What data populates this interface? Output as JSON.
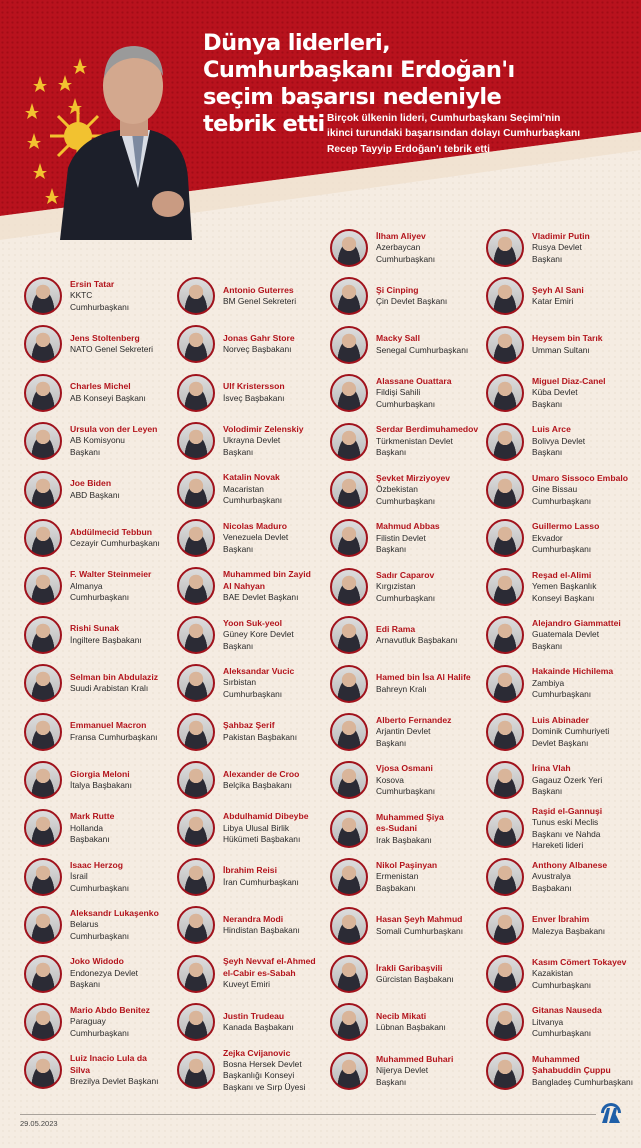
{
  "header": {
    "title": "Dünya liderleri,\nCumhurbaşkanı Erdoğan'ı\nseçim başarısı nedeniyle\ntebrik etti",
    "subtitle": "Birçok ülkenin lideri, Cumhurbaşkanı Seçimi'nin\nikinci turundaki başarısından dolayı Cumhurbaşkanı\nRecep Tayyip Erdoğan'ı tebrik etti"
  },
  "colors": {
    "brand_red": "#b8121d",
    "name_red": "#b3141c",
    "background": "#f5ece2",
    "logo_blue": "#1f5fa8"
  },
  "columns": [
    [
      {
        "name": "Ersin Tatar",
        "role": "KKTC\nCumhurbaşkanı"
      },
      {
        "name": "Jens Stoltenberg",
        "role": "NATO Genel Sekreteri"
      },
      {
        "name": "Charles Michel",
        "role": "AB Konseyi Başkanı"
      },
      {
        "name": "Ursula von der Leyen",
        "role": "AB Komisyonu\nBaşkanı"
      },
      {
        "name": "Joe Biden",
        "role": "ABD Başkanı"
      },
      {
        "name": "Abdülmecid Tebbun",
        "role": "Cezayir Cumhurbaşkanı"
      },
      {
        "name": "F. Walter Steinmeier",
        "role": "Almanya\nCumhurbaşkanı"
      },
      {
        "name": "Rishi Sunak",
        "role": "İngiltere Başbakanı"
      },
      {
        "name": "Selman bin Abdulaziz",
        "role": "Suudi Arabistan Kralı"
      },
      {
        "name": "Emmanuel Macron",
        "role": "Fransa Cumhurbaşkanı"
      },
      {
        "name": "Giorgia Meloni",
        "role": "İtalya Başbakanı"
      },
      {
        "name": "Mark Rutte",
        "role": "Hollanda\nBaşbakanı"
      },
      {
        "name": "Isaac Herzog",
        "role": "İsrail\nCumhurbaşkanı"
      },
      {
        "name": "Aleksandr Lukaşenko",
        "role": "Belarus\nCumhurbaşkanı"
      },
      {
        "name": "Joko Widodo",
        "role": "Endonezya Devlet\nBaşkanı"
      },
      {
        "name": "Mario Abdo Benitez",
        "role": "Paraguay\nCumhurbaşkanı"
      },
      {
        "name": "Luiz Inacio Lula da\nSilva",
        "role": "Brezilya Devlet Başkanı"
      }
    ],
    [
      {
        "name": "Antonio Guterres",
        "role": "BM Genel Sekreteri"
      },
      {
        "name": "Jonas Gahr Store",
        "role": "Norveç Başbakanı"
      },
      {
        "name": "Ulf Kristersson",
        "role": "İsveç Başbakanı"
      },
      {
        "name": "Volodimir Zelenskiy",
        "role": "Ukrayna Devlet\nBaşkanı"
      },
      {
        "name": "Katalin Novak",
        "role": "Macaristan\nCumhurbaşkanı"
      },
      {
        "name": "Nicolas Maduro",
        "role": "Venezuela Devlet\nBaşkanı"
      },
      {
        "name": "Muhammed bin Zayid\nAl Nahyan",
        "role": "BAE Devlet Başkanı"
      },
      {
        "name": "Yoon Suk-yeol",
        "role": "Güney Kore Devlet\nBaşkanı"
      },
      {
        "name": "Aleksandar Vucic",
        "role": "Sırbistan\nCumhurbaşkanı"
      },
      {
        "name": "Şahbaz Şerif",
        "role": "Pakistan Başbakanı"
      },
      {
        "name": "Alexander de Croo",
        "role": "Belçika Başbakanı"
      },
      {
        "name": "Abdulhamid Dibeybe",
        "role": "Libya Ulusal Birlik\nHükümeti Başbakanı"
      },
      {
        "name": "İbrahim Reisi",
        "role": "İran Cumhurbaşkanı"
      },
      {
        "name": "Nerandra Modi",
        "role": "Hindistan Başbakanı"
      },
      {
        "name": "Şeyh Nevvaf el-Ahmed\nel-Cabir es-Sabah",
        "role": "Kuveyt Emiri"
      },
      {
        "name": "Justin Trudeau",
        "role": "Kanada Başbakanı"
      },
      {
        "name": "Zejka Cvijanovic",
        "role": "Bosna Hersek Devlet\nBaşkanlığı Konseyi\nBaşkanı ve Sırp Üyesi"
      }
    ],
    [
      {
        "name": "İlham Aliyev",
        "role": "Azerbaycan\nCumhurbaşkanı"
      },
      {
        "name": "Şi Cinping",
        "role": "Çin Devlet Başkanı"
      },
      {
        "name": "Macky Sall",
        "role": "Senegal Cumhurbaşkanı"
      },
      {
        "name": "Alassane Ouattara",
        "role": "Fildişi Sahili\nCumhurbaşkanı"
      },
      {
        "name": "Serdar Berdimuhamedov",
        "role": "Türkmenistan Devlet\nBaşkanı"
      },
      {
        "name": "Şevket Mirziyoyev",
        "role": "Özbekistan\nCumhurbaşkanı"
      },
      {
        "name": "Mahmud Abbas",
        "role": "Filistin Devlet\nBaşkanı"
      },
      {
        "name": "Sadır Caparov",
        "role": "Kırgızistan\nCumhurbaşkanı"
      },
      {
        "name": "Edi Rama",
        "role": "Arnavutluk Başbakanı"
      },
      {
        "name": "Hamed bin İsa Al Halife",
        "role": "Bahreyn Kralı"
      },
      {
        "name": "Alberto Fernandez",
        "role": "Arjantin Devlet\nBaşkanı"
      },
      {
        "name": "Vjosa Osmani",
        "role": "Kosova\nCumhurbaşkanı"
      },
      {
        "name": "Muhammed Şiya\nes-Sudani",
        "role": "Irak Başbakanı"
      },
      {
        "name": "Nikol Paşinyan",
        "role": "Ermenistan\nBaşbakanı"
      },
      {
        "name": "Hasan Şeyh Mahmud",
        "role": "Somali Cumhurbaşkanı"
      },
      {
        "name": "İrakli Garibaşvili",
        "role": "Gürcistan Başbakanı"
      },
      {
        "name": "Necib Mikati",
        "role": "Lübnan Başbakanı"
      },
      {
        "name": "Muhammed Buhari",
        "role": "Nijerya Devlet\nBaşkanı"
      }
    ],
    [
      {
        "name": "Vladimir Putin",
        "role": "Rusya Devlet\nBaşkanı"
      },
      {
        "name": "Şeyh Al Sani",
        "role": "Katar Emiri"
      },
      {
        "name": "Heysem bin Tarık",
        "role": "Umman Sultanı"
      },
      {
        "name": "Miguel Diaz-Canel",
        "role": "Küba Devlet\nBaşkanı"
      },
      {
        "name": "Luis Arce",
        "role": "Bolivya Devlet\nBaşkanı"
      },
      {
        "name": "Umaro Sissoco Embalo",
        "role": "Gine Bissau\nCumhurbaşkanı"
      },
      {
        "name": "Guillermo Lasso",
        "role": "Ekvador\nCumhurbaşkanı"
      },
      {
        "name": "Reşad el-Alimi",
        "role": "Yemen Başkanlık\nKonseyi Başkanı"
      },
      {
        "name": "Alejandro Giammattei",
        "role": "Guatemala Devlet\nBaşkanı"
      },
      {
        "name": "Hakainde Hichilema",
        "role": "Zambiya\nCumhurbaşkanı"
      },
      {
        "name": "Luis Abinader",
        "role": "Dominik Cumhuriyeti\nDevlet Başkanı"
      },
      {
        "name": "İrina Vlah",
        "role": "Gagauz Özerk Yeri\nBaşkanı"
      },
      {
        "name": "Raşid el-Gannuşi",
        "role": "Tunus eski Meclis\nBaşkanı ve Nahda\nHareketi lideri"
      },
      {
        "name": "Anthony Albanese",
        "role": "Avustralya\nBaşbakanı"
      },
      {
        "name": "Enver İbrahim",
        "role": "Malezya Başbakanı"
      },
      {
        "name": "Kasım Cömert Tokayev",
        "role": "Kazakistan\nCumhurbaşkanı"
      },
      {
        "name": "Gitanas Nauseda",
        "role": "Litvanya\nCumhurbaşkanı"
      },
      {
        "name": "Muhammed\nŞahabuddin Çuppu",
        "role": "Bangladeş Cumhurbaşkanı"
      }
    ]
  ],
  "footer": {
    "date": "29.05.2023",
    "logo": "AA"
  }
}
